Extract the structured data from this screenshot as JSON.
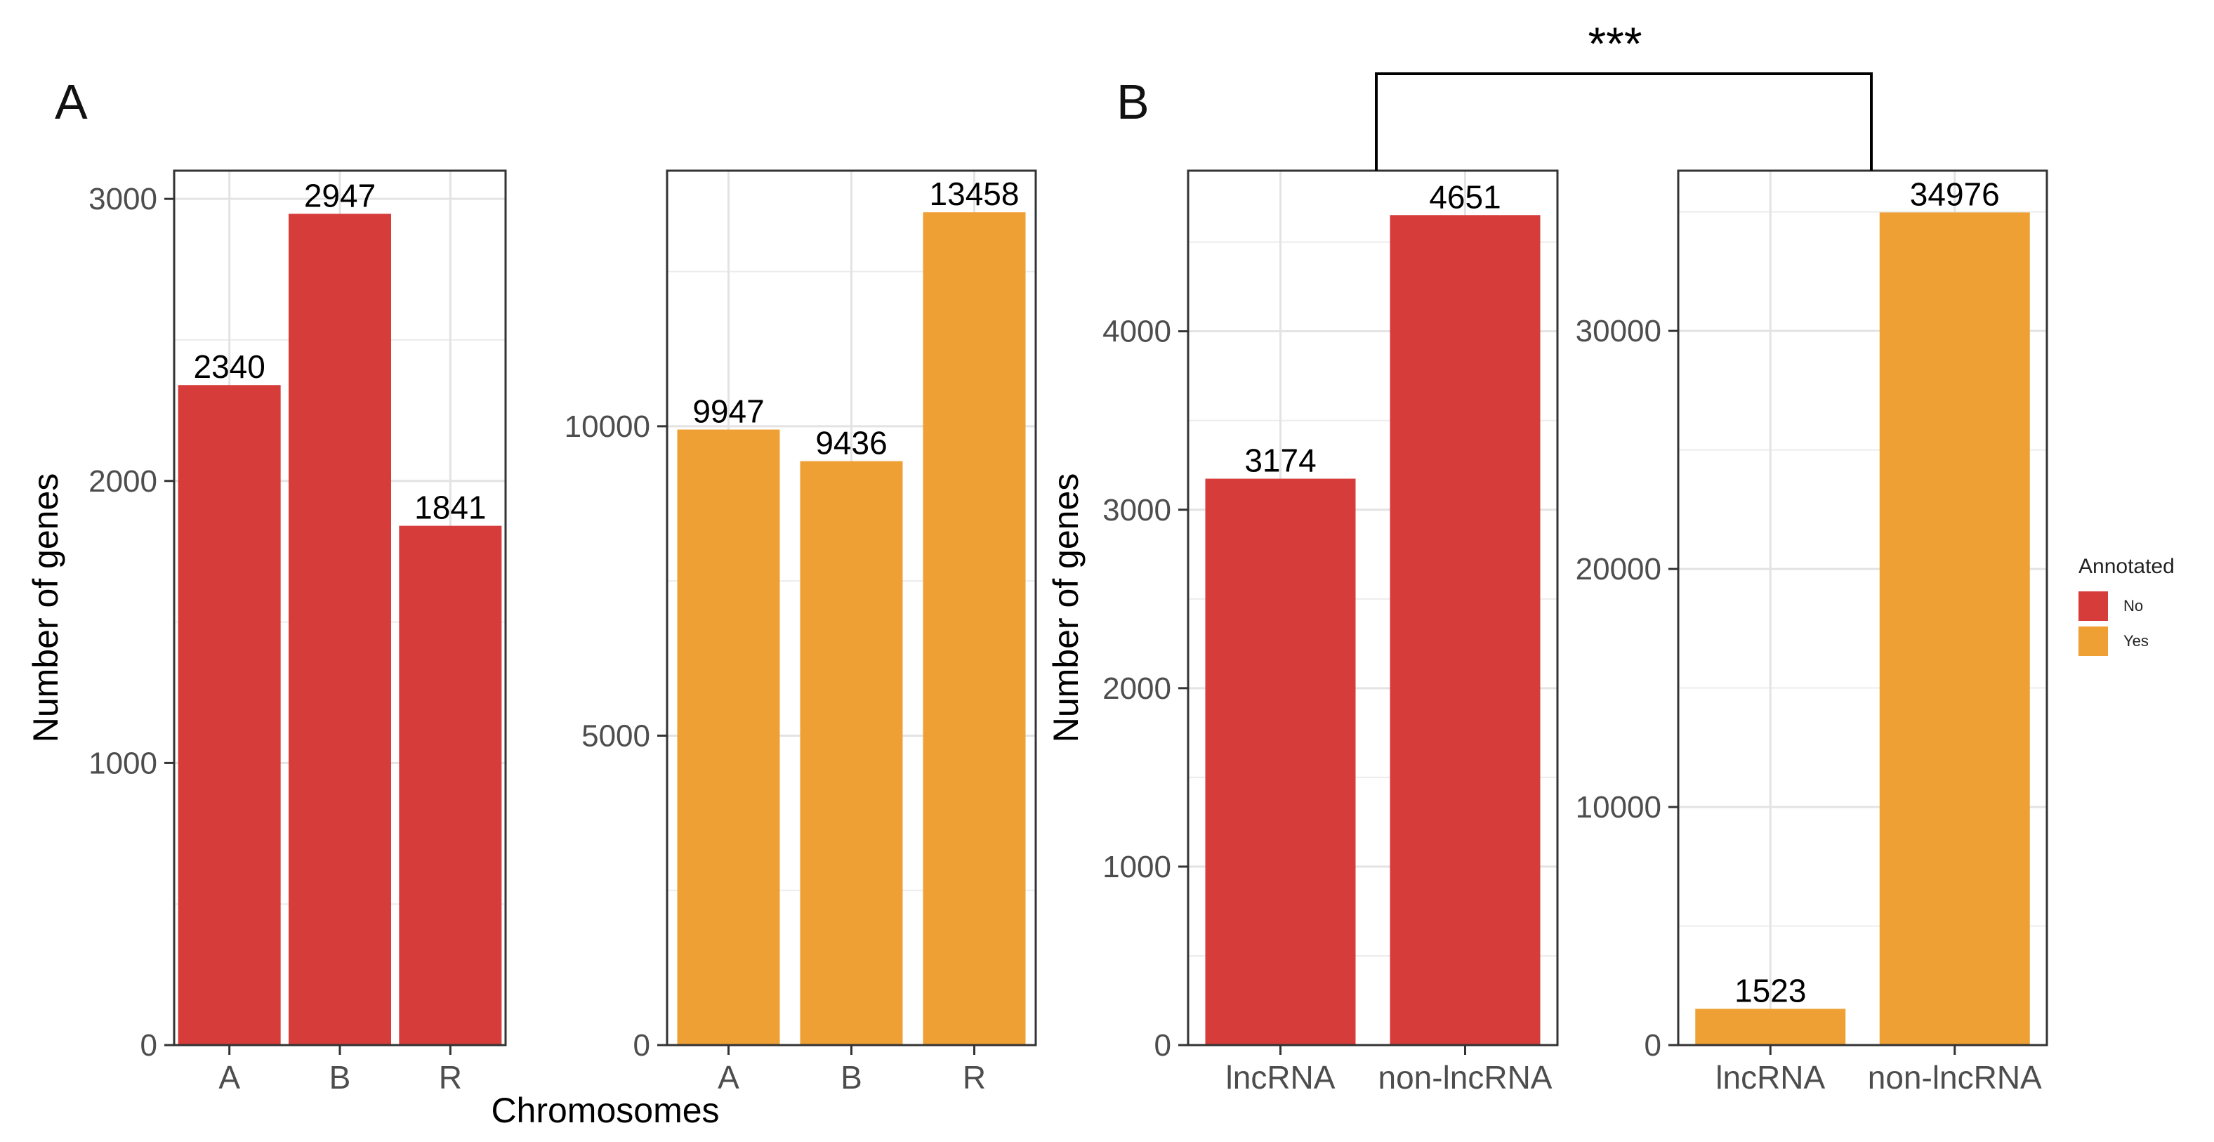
{
  "panels": {
    "a_label": "A",
    "b_label": "B",
    "significance": "***"
  },
  "legend": {
    "title": "Annotated",
    "items": [
      {
        "label": "No",
        "color": "#d63d3a"
      },
      {
        "label": "Yes",
        "color": "#efa034"
      }
    ]
  },
  "chart_data": [
    {
      "type": "bar",
      "panel": "A",
      "facet": "No",
      "categories": [
        "A",
        "B",
        "R"
      ],
      "values": [
        2340,
        2947,
        1841
      ],
      "data_labels": [
        "2340",
        "2947",
        "1841"
      ],
      "ylim": [
        0,
        3100
      ],
      "yticks": [
        0,
        1000,
        2000,
        3000
      ],
      "ylabel": "Number of genes",
      "xlabel": "Chromosomes",
      "color": "#d63d3a"
    },
    {
      "type": "bar",
      "panel": "A",
      "facet": "Yes",
      "categories": [
        "A",
        "B",
        "R"
      ],
      "values": [
        9947,
        9436,
        13458
      ],
      "data_labels": [
        "9947",
        "9436",
        "13458"
      ],
      "ylim": [
        0,
        14130
      ],
      "yticks": [
        0,
        5000,
        10000
      ],
      "ylabel": "",
      "xlabel": "",
      "color": "#efa034"
    },
    {
      "type": "bar",
      "panel": "B",
      "facet": "No",
      "categories": [
        "lncRNA",
        "non-lncRNA"
      ],
      "values": [
        3174,
        4651
      ],
      "data_labels": [
        "3174",
        "4651"
      ],
      "ylim": [
        0,
        4900
      ],
      "yticks": [
        0,
        1000,
        2000,
        3000,
        4000
      ],
      "ylabel": "Number of genes",
      "xlabel": "",
      "color": "#d63d3a"
    },
    {
      "type": "bar",
      "panel": "B",
      "facet": "Yes",
      "categories": [
        "lncRNA",
        "non-lncRNA"
      ],
      "values": [
        1523,
        34976
      ],
      "data_labels": [
        "1523",
        "34976"
      ],
      "ylim": [
        0,
        36730
      ],
      "yticks": [
        0,
        10000,
        20000,
        30000
      ],
      "ylabel": "",
      "xlabel": "",
      "color": "#efa034"
    }
  ]
}
